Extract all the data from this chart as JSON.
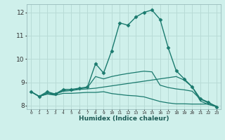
{
  "xlabel": "Humidex (Indice chaleur)",
  "background_color": "#cff0eb",
  "grid_color": "#b8dbd6",
  "line_color": "#1a7a6e",
  "xlim": [
    -0.5,
    23.5
  ],
  "ylim": [
    7.85,
    12.35
  ],
  "xticks": [
    0,
    1,
    2,
    3,
    4,
    5,
    6,
    7,
    8,
    9,
    10,
    11,
    12,
    13,
    14,
    15,
    16,
    17,
    18,
    19,
    20,
    21,
    22,
    23
  ],
  "yticks": [
    8,
    9,
    10,
    11,
    12
  ],
  "series": [
    {
      "x": [
        0,
        1,
        2,
        3,
        4,
        5,
        6,
        7,
        8,
        9,
        10,
        11,
        12,
        13,
        14,
        15,
        16,
        17,
        18,
        19,
        20,
        21,
        22,
        23
      ],
      "y": [
        8.6,
        8.4,
        8.6,
        8.5,
        8.7,
        8.7,
        8.75,
        8.8,
        9.8,
        9.4,
        10.35,
        11.55,
        11.45,
        11.8,
        12.0,
        12.1,
        11.7,
        10.5,
        9.5,
        9.15,
        8.8,
        8.3,
        8.15,
        7.95
      ],
      "marker": "D",
      "markersize": 2.5,
      "linewidth": 1.0,
      "has_marker": true
    },
    {
      "x": [
        0,
        1,
        2,
        3,
        4,
        5,
        6,
        7,
        8,
        9,
        10,
        11,
        12,
        13,
        14,
        15,
        16,
        17,
        18,
        19,
        20,
        21,
        22,
        23
      ],
      "y": [
        8.6,
        8.4,
        8.5,
        8.5,
        8.62,
        8.65,
        8.7,
        8.72,
        8.75,
        8.8,
        8.85,
        8.9,
        8.95,
        9.0,
        9.05,
        9.1,
        9.15,
        9.2,
        9.25,
        9.1,
        8.8,
        8.2,
        8.05,
        7.97
      ],
      "marker": null,
      "markersize": 0,
      "linewidth": 0.9,
      "has_marker": false
    },
    {
      "x": [
        0,
        1,
        2,
        3,
        4,
        5,
        6,
        7,
        8,
        9,
        10,
        11,
        12,
        13,
        14,
        15,
        16,
        17,
        18,
        19,
        20,
        21,
        22,
        23
      ],
      "y": [
        8.6,
        8.4,
        8.5,
        8.45,
        8.53,
        8.53,
        8.55,
        8.57,
        8.57,
        8.6,
        8.52,
        8.48,
        8.44,
        8.42,
        8.38,
        8.28,
        8.18,
        8.12,
        8.08,
        8.08,
        8.07,
        8.07,
        8.07,
        7.95
      ],
      "marker": null,
      "markersize": 0,
      "linewidth": 0.9,
      "has_marker": false
    },
    {
      "x": [
        0,
        1,
        2,
        3,
        4,
        5,
        6,
        7,
        8,
        9,
        10,
        11,
        12,
        13,
        14,
        15,
        16,
        17,
        18,
        19,
        20,
        21,
        22,
        23
      ],
      "y": [
        8.6,
        8.4,
        8.55,
        8.5,
        8.65,
        8.65,
        8.73,
        8.78,
        9.25,
        9.15,
        9.25,
        9.32,
        9.38,
        9.43,
        9.48,
        9.45,
        8.88,
        8.78,
        8.72,
        8.68,
        8.62,
        8.28,
        8.12,
        7.98
      ],
      "marker": null,
      "markersize": 0,
      "linewidth": 0.9,
      "has_marker": false
    }
  ]
}
